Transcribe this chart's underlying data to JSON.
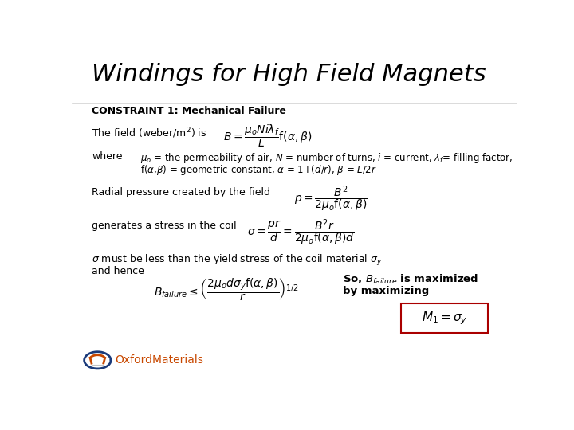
{
  "title": "Windings for High Field Magnets",
  "background_color": "#ffffff",
  "title_fontsize": 22,
  "constraint_text": "CONSTRAINT 1: Mechanical Failure",
  "field_formula": "$B = \\dfrac{\\mu_o N i \\lambda_f}{L} \\mathrm{f}(\\alpha, \\beta)$",
  "where_label": "where",
  "where_text1": "$\\mu_o$ = the permeability of air, $N$ = number of turns, $i$ = current, $\\lambda_f$= filling factor,",
  "where_text2": "f($\\alpha$,$\\beta$) = geometric constant, $\\alpha$ = 1+($d$/$r$), $\\beta$ = $L$/2$r$",
  "pressure_text": "Radial pressure created by the field",
  "pressure_formula": "$p = \\dfrac{B^2}{2\\mu_o \\mathrm{f}(\\alpha,\\beta)}$",
  "stress_text": "generates a stress in the coil",
  "stress_formula": "$\\sigma = \\dfrac{pr}{d} = \\dfrac{B^2 r}{2\\mu_o \\mathrm{f}(\\alpha,\\beta)d}$",
  "yield_text1": "$\\sigma$ must be less than the yield stress of the coil material $\\sigma_y$",
  "yield_text2": "and hence",
  "b_failure_formula": "$B_{failure} \\leq \\left(\\dfrac{2\\mu_o d\\sigma_y \\mathrm{f}(\\alpha,\\beta)}{r}\\right)^{1/2}$",
  "maximized_text1": "So, $B_{failure}$ is maximized",
  "maximized_text2": "by maximizing",
  "m1_formula": "$M_1 = \\sigma_y$",
  "oxford_text": "OxfordMaterials",
  "oxford_color": "#c84800",
  "logo_color_outer": "#1a3a7a",
  "logo_color_inner": "#c84800",
  "box_color": "#aa0000",
  "body_fontsize": 9,
  "formula_fontsize": 10,
  "where_fontsize": 8.5
}
